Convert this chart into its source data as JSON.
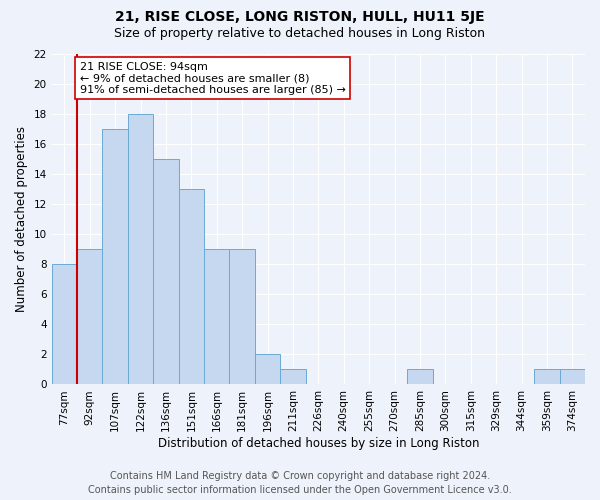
{
  "title": "21, RISE CLOSE, LONG RISTON, HULL, HU11 5JE",
  "subtitle": "Size of property relative to detached houses in Long Riston",
  "xlabel": "Distribution of detached houses by size in Long Riston",
  "ylabel": "Number of detached properties",
  "categories": [
    "77sqm",
    "92sqm",
    "107sqm",
    "122sqm",
    "136sqm",
    "151sqm",
    "166sqm",
    "181sqm",
    "196sqm",
    "211sqm",
    "226sqm",
    "240sqm",
    "255sqm",
    "270sqm",
    "285sqm",
    "300sqm",
    "315sqm",
    "329sqm",
    "344sqm",
    "359sqm",
    "374sqm"
  ],
  "values": [
    8,
    9,
    17,
    18,
    15,
    13,
    9,
    9,
    2,
    1,
    0,
    0,
    0,
    0,
    1,
    0,
    0,
    0,
    0,
    1,
    1
  ],
  "bar_color": "#c5d8f0",
  "bar_edge_color": "#6aaad4",
  "vline_x_index": 1,
  "vline_color": "#cc0000",
  "annotation_text": "21 RISE CLOSE: 94sqm\n← 9% of detached houses are smaller (8)\n91% of semi-detached houses are larger (85) →",
  "annotation_box_facecolor": "#ffffff",
  "annotation_box_edgecolor": "#cc0000",
  "ylim": [
    0,
    22
  ],
  "yticks": [
    0,
    2,
    4,
    6,
    8,
    10,
    12,
    14,
    16,
    18,
    20,
    22
  ],
  "background_color": "#eef2fb",
  "grid_color": "#ffffff",
  "title_fontsize": 10,
  "subtitle_fontsize": 9,
  "axis_label_fontsize": 8.5,
  "tick_fontsize": 7.5,
  "annotation_fontsize": 8,
  "footer_fontsize": 7,
  "footer_text": "Contains HM Land Registry data © Crown copyright and database right 2024.\nContains public sector information licensed under the Open Government Licence v3.0.",
  "footer_color": "#555555"
}
